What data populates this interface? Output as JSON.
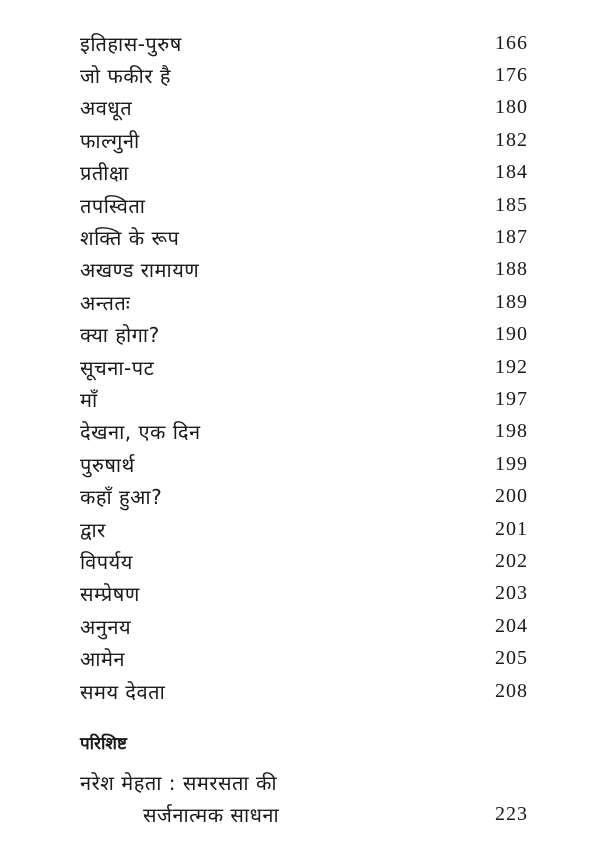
{
  "entries": [
    {
      "title": "इतिहास-पुरुष",
      "page": "166"
    },
    {
      "title": "जो फकीर है",
      "page": "176"
    },
    {
      "title": "अवधूत",
      "page": "180"
    },
    {
      "title": "फाल्गुनी",
      "page": "182"
    },
    {
      "title": "प्रतीक्षा",
      "page": "184"
    },
    {
      "title": "तपस्विता",
      "page": "185"
    },
    {
      "title": "शक्ति के रूप",
      "page": "187"
    },
    {
      "title": "अखण्ड रामायण",
      "page": "188"
    },
    {
      "title": "अन्ततः",
      "page": "189"
    },
    {
      "title": "क्या होगा?",
      "page": "190"
    },
    {
      "title": "सूचना-पट",
      "page": "192"
    },
    {
      "title": "माँ",
      "page": "197"
    },
    {
      "title": "देखना, एक दिन",
      "page": "198"
    },
    {
      "title": "पुरुषार्थ",
      "page": "199"
    },
    {
      "title": "कहाँ हुआ?",
      "page": "200"
    },
    {
      "title": "द्वार",
      "page": "201"
    },
    {
      "title": "विपर्यय",
      "page": "202"
    },
    {
      "title": "सम्प्रेषण",
      "page": "203"
    },
    {
      "title": "अनुनय",
      "page": "204"
    },
    {
      "title": "आमेन",
      "page": "205"
    },
    {
      "title": "समय देवता",
      "page": "208"
    }
  ],
  "appendix": {
    "heading": "परिशिष्ट",
    "title_line1": "नरेश मेहता : समरसता की",
    "title_line2": "सर्जनात्मक साधना",
    "page": "223"
  }
}
